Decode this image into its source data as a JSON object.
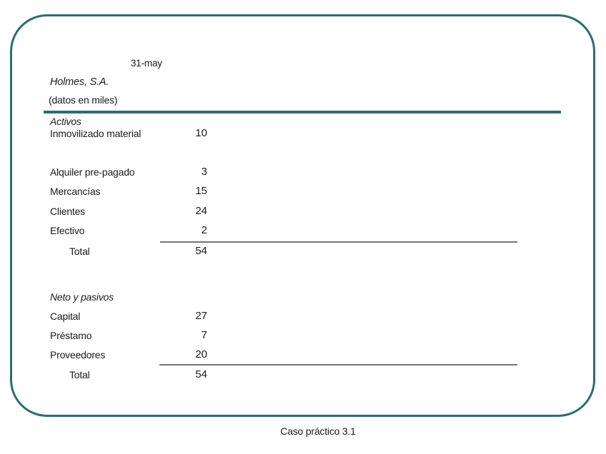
{
  "slide": {
    "date_header": "31-may",
    "company": "Holmes, S.A.",
    "units_note": "(datos en miles)",
    "sections": {
      "assets": {
        "title": "Activos",
        "rows": [
          {
            "label": "Inmovilizado material",
            "value": "10"
          },
          {
            "label": "Alquiler pre-pagado",
            "value": "3"
          },
          {
            "label": "Mercancías",
            "value": "15"
          },
          {
            "label": "Clientes",
            "value": "24"
          },
          {
            "label": "Efectivo",
            "value": "2"
          }
        ],
        "total_label": "Total",
        "total_value": "54"
      },
      "liabilities": {
        "title": "Neto y pasivos",
        "rows": [
          {
            "label": "Capital",
            "value": "27"
          },
          {
            "label": "Préstamo",
            "value": "7"
          },
          {
            "label": "Proveedores",
            "value": "20"
          }
        ],
        "total_label": "Total",
        "total_value": "54"
      }
    }
  },
  "caption": "Caso práctico 3.1",
  "colors": {
    "accent_teal": "#2e6d6d",
    "rule_gray": "#747474",
    "text": "#1b1b1b"
  }
}
